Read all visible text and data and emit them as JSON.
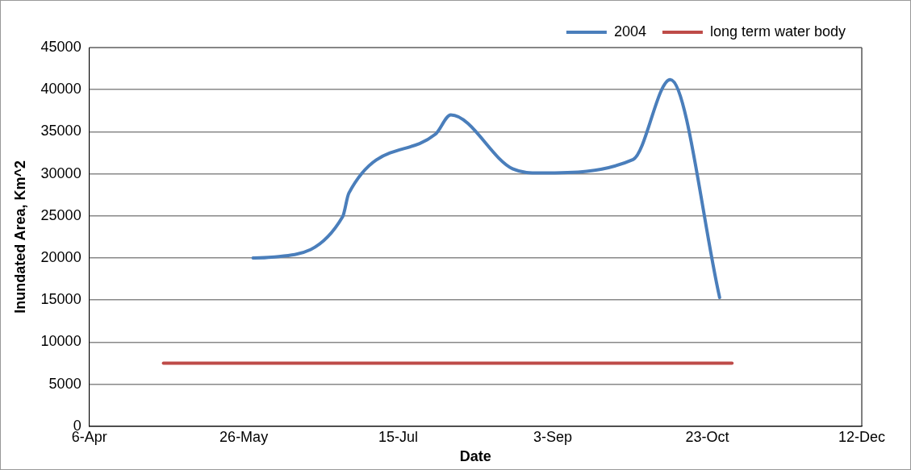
{
  "chart_data": {
    "type": "line",
    "xlabel": "Date",
    "ylabel": "Inundated Area, Km^2",
    "xlim": [
      "2004-04-06",
      "2004-12-12"
    ],
    "xticks": [
      {
        "value": "2004-04-06",
        "label": "6-Apr"
      },
      {
        "value": "2004-05-26",
        "label": "26-May"
      },
      {
        "value": "2004-07-15",
        "label": "15-Jul"
      },
      {
        "value": "2004-09-03",
        "label": "3-Sep"
      },
      {
        "value": "2004-10-23",
        "label": "23-Oct"
      },
      {
        "value": "2004-12-12",
        "label": "12-Dec"
      }
    ],
    "ylim": [
      0,
      45000
    ],
    "yticks": [
      0,
      5000,
      10000,
      15000,
      20000,
      25000,
      30000,
      35000,
      40000,
      45000
    ],
    "grid": "y",
    "legend": "top right",
    "marker": "none",
    "line_style": "solid",
    "series": [
      {
        "name": "2004",
        "color": "#4a7ebb",
        "x": [
          "2004-05-29",
          "2004-06-04",
          "2004-06-27",
          "2004-06-29",
          "2004-07-27",
          "2004-08-01",
          "2004-08-21",
          "2004-08-30",
          "2004-09-29",
          "2004-10-11",
          "2004-10-27"
        ],
        "values": [
          20000,
          20100,
          24900,
          27700,
          34700,
          37000,
          30600,
          30100,
          31700,
          41200,
          15300
        ]
      },
      {
        "name": "long term water body",
        "color": "#be4b48",
        "x": [
          "2004-04-30",
          "2004-10-31"
        ],
        "values": [
          7500,
          7500
        ]
      }
    ]
  }
}
